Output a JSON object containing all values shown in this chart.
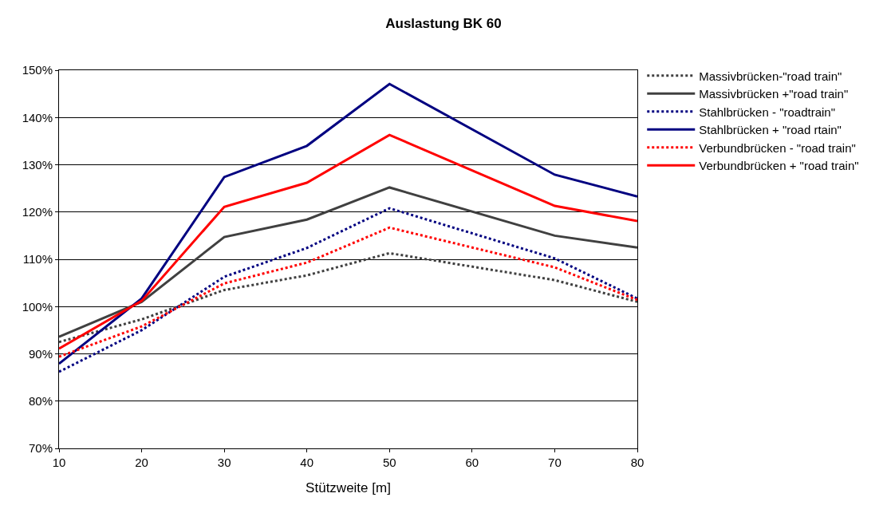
{
  "chart_data": {
    "type": "line",
    "title": "Auslastung BK 60",
    "xlabel": "Stützweite [m]",
    "x": [
      10,
      20,
      30,
      40,
      50,
      70,
      80
    ],
    "xlim": [
      10,
      80
    ],
    "xticks": [
      10,
      20,
      30,
      40,
      50,
      60,
      70,
      80
    ],
    "ylim": [
      70,
      150
    ],
    "yticks": [
      {
        "value": 70,
        "label": "70%"
      },
      {
        "value": 80,
        "label": "80%"
      },
      {
        "value": 90,
        "label": "90%"
      },
      {
        "value": 100,
        "label": "100%"
      },
      {
        "value": 110,
        "label": "110%"
      },
      {
        "value": 120,
        "label": "120%"
      },
      {
        "value": 130,
        "label": "130%"
      },
      {
        "value": 140,
        "label": "140%"
      },
      {
        "value": 150,
        "label": "150%"
      }
    ],
    "grid": "y",
    "legend": "right",
    "marker": "none",
    "series": [
      {
        "name": "Massivbrücken-\"road train\"",
        "color": "#404040",
        "line_style": "dotted",
        "values": [
          92.5,
          97.3,
          103.5,
          106.6,
          111.3,
          105.6,
          101.0
        ]
      },
      {
        "name": "Massivbrücken +\"road train\"",
        "color": "#404040",
        "line_style": "solid",
        "values": [
          93.6,
          101.0,
          114.7,
          118.4,
          125.2,
          115.0,
          112.5
        ]
      },
      {
        "name": "Stahlbrücken - \"roadtrain\"",
        "color": "#000080",
        "line_style": "dotted",
        "values": [
          86.2,
          95.0,
          106.3,
          112.4,
          120.8,
          110.2,
          101.7
        ]
      },
      {
        "name": "Stahlbrücken + \"road rtain\"",
        "color": "#000080",
        "line_style": "solid",
        "values": [
          87.9,
          101.7,
          127.4,
          134.0,
          147.1,
          127.9,
          123.3
        ]
      },
      {
        "name": "Verbundbrücken - \"road train\"",
        "color": "#ff0000",
        "line_style": "dotted",
        "values": [
          89.4,
          95.8,
          104.9,
          109.3,
          116.7,
          108.3,
          101.4
        ]
      },
      {
        "name": "Verbundbrücken + \"road train\"",
        "color": "#ff0000",
        "line_style": "solid",
        "values": [
          91.1,
          101.2,
          121.1,
          126.2,
          136.3,
          121.3,
          118.1
        ]
      }
    ]
  }
}
